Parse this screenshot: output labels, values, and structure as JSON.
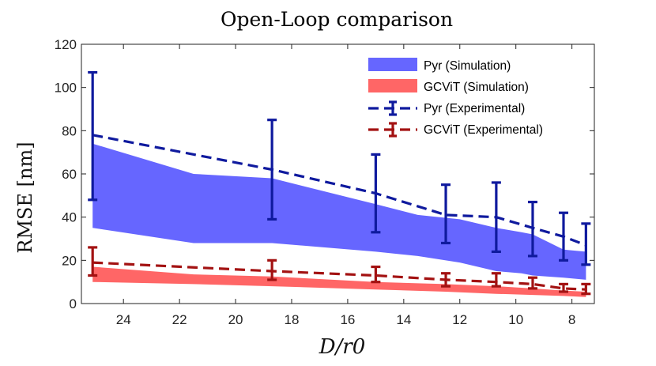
{
  "chart_data": {
    "type": "area",
    "title": "Open-Loop comparison",
    "xlabel": "D/r0",
    "ylabel": "RMSE [nm]",
    "xlim": [
      25.5,
      7.2
    ],
    "ylim": [
      0,
      120
    ],
    "x_reversed": true,
    "xticks": [
      24,
      22,
      20,
      18,
      16,
      14,
      12,
      10,
      8
    ],
    "yticks": [
      0,
      20,
      40,
      60,
      80,
      100,
      120
    ],
    "grid": false,
    "legend_position": "top-right",
    "series": [
      {
        "name": "Pyr (Simulation)",
        "kind": "band",
        "color": "#6666ff",
        "x": [
          25.1,
          21.5,
          18.7,
          15,
          13.5,
          12,
          10.7,
          9.8,
          9.4,
          8.3,
          7.5
        ],
        "lower": [
          35,
          28,
          28,
          24,
          22,
          19,
          15,
          14,
          13,
          12,
          11
        ],
        "upper": [
          74,
          60,
          58,
          46,
          41,
          39,
          35,
          33,
          32,
          25,
          24
        ]
      },
      {
        "name": "GCViT (Simulation)",
        "kind": "band",
        "color": "#ff6666",
        "x": [
          25.1,
          21.5,
          18.7,
          15,
          12.5,
          10.7,
          9.4,
          8.3,
          7.5
        ],
        "lower": [
          10,
          9,
          8,
          6.5,
          5.5,
          4.5,
          4,
          3.5,
          3
        ],
        "upper": [
          17,
          13.5,
          12.5,
          10,
          9,
          8,
          7,
          6,
          5.5
        ]
      },
      {
        "name": "Pyr (Experimental)",
        "kind": "errorbar",
        "color": "#0f1a9e",
        "x": [
          25.1,
          18.7,
          15,
          12.5,
          10.7,
          9.4,
          8.3,
          7.5
        ],
        "y": [
          78,
          62,
          51,
          41,
          40,
          35,
          31,
          27
        ],
        "lower": [
          48,
          39,
          33,
          28,
          24,
          22,
          20,
          18
        ],
        "upper": [
          107,
          85,
          69,
          55,
          56,
          47,
          42,
          37
        ]
      },
      {
        "name": "GCViT (Experimental)",
        "kind": "errorbar",
        "color": "#a31212",
        "x": [
          25.1,
          18.7,
          15,
          12.5,
          10.7,
          9.4,
          8.3,
          7.5
        ],
        "y": [
          19,
          15,
          13,
          11,
          10,
          9,
          7,
          6.5
        ],
        "lower": [
          13,
          11,
          10,
          8,
          8,
          7,
          5.5,
          4.5
        ],
        "upper": [
          26,
          20,
          17,
          14,
          14,
          12,
          9,
          9
        ]
      }
    ]
  }
}
